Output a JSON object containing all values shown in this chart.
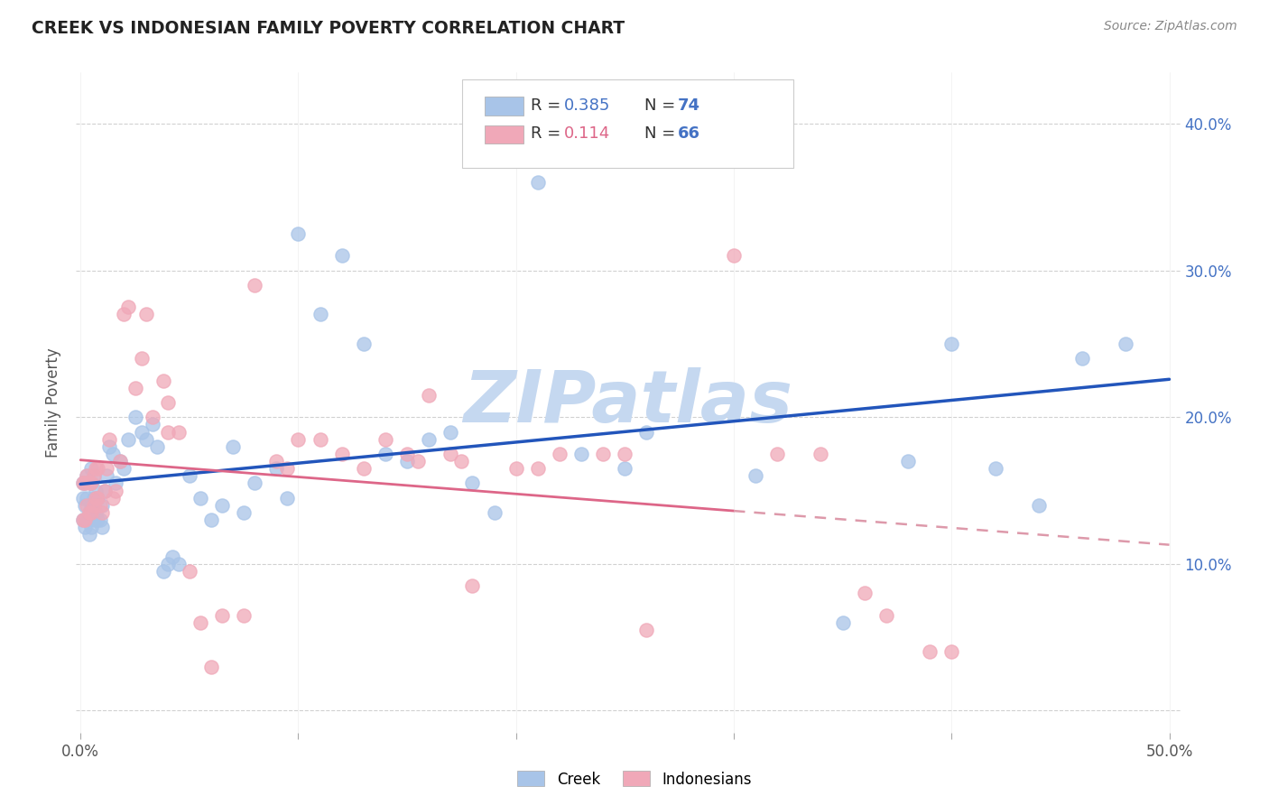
{
  "title": "CREEK VS INDONESIAN FAMILY POVERTY CORRELATION CHART",
  "source": "Source: ZipAtlas.com",
  "ylabel": "Family Poverty",
  "ytick_labels": [
    "",
    "10.0%",
    "20.0%",
    "30.0%",
    "40.0%"
  ],
  "yticks": [
    0.0,
    0.1,
    0.2,
    0.3,
    0.4
  ],
  "xticks": [
    0.0,
    0.1,
    0.2,
    0.3,
    0.4,
    0.5
  ],
  "xlim": [
    -0.002,
    0.505
  ],
  "ylim": [
    -0.015,
    0.435
  ],
  "creek_R": 0.385,
  "creek_N": 74,
  "indonesian_R": 0.114,
  "indonesian_N": 66,
  "creek_color": "#a8c4e8",
  "indonesian_color": "#f0a8b8",
  "creek_line_color": "#2255bb",
  "indonesian_line_color": "#dd6688",
  "indonesian_line_dashed_color": "#dd99aa",
  "watermark_text": "ZIPatlas",
  "watermark_color": "#c5d8f0",
  "background_color": "#ffffff",
  "creek_x": [
    0.001,
    0.001,
    0.001,
    0.002,
    0.002,
    0.002,
    0.003,
    0.003,
    0.003,
    0.004,
    0.004,
    0.005,
    0.005,
    0.005,
    0.005,
    0.006,
    0.006,
    0.006,
    0.007,
    0.007,
    0.008,
    0.008,
    0.009,
    0.01,
    0.01,
    0.011,
    0.012,
    0.013,
    0.015,
    0.016,
    0.018,
    0.02,
    0.022,
    0.025,
    0.028,
    0.03,
    0.033,
    0.035,
    0.038,
    0.04,
    0.042,
    0.045,
    0.05,
    0.055,
    0.06,
    0.065,
    0.07,
    0.075,
    0.08,
    0.09,
    0.095,
    0.1,
    0.11,
    0.12,
    0.13,
    0.14,
    0.15,
    0.16,
    0.17,
    0.18,
    0.19,
    0.2,
    0.21,
    0.23,
    0.25,
    0.26,
    0.31,
    0.35,
    0.38,
    0.4,
    0.42,
    0.44,
    0.46,
    0.48
  ],
  "creek_y": [
    0.13,
    0.145,
    0.155,
    0.125,
    0.14,
    0.155,
    0.13,
    0.145,
    0.16,
    0.12,
    0.135,
    0.125,
    0.14,
    0.155,
    0.165,
    0.13,
    0.145,
    0.16,
    0.135,
    0.15,
    0.13,
    0.145,
    0.13,
    0.125,
    0.14,
    0.15,
    0.16,
    0.18,
    0.175,
    0.155,
    0.17,
    0.165,
    0.185,
    0.2,
    0.19,
    0.185,
    0.195,
    0.18,
    0.095,
    0.1,
    0.105,
    0.1,
    0.16,
    0.145,
    0.13,
    0.14,
    0.18,
    0.135,
    0.155,
    0.165,
    0.145,
    0.325,
    0.27,
    0.31,
    0.25,
    0.175,
    0.17,
    0.185,
    0.19,
    0.155,
    0.135,
    0.38,
    0.36,
    0.175,
    0.165,
    0.19,
    0.16,
    0.06,
    0.17,
    0.25,
    0.165,
    0.14,
    0.24,
    0.25
  ],
  "indonesian_x": [
    0.001,
    0.001,
    0.002,
    0.002,
    0.003,
    0.003,
    0.004,
    0.004,
    0.005,
    0.005,
    0.006,
    0.006,
    0.007,
    0.007,
    0.008,
    0.008,
    0.009,
    0.01,
    0.011,
    0.012,
    0.013,
    0.015,
    0.016,
    0.018,
    0.02,
    0.022,
    0.025,
    0.028,
    0.03,
    0.033,
    0.038,
    0.04,
    0.045,
    0.05,
    0.055,
    0.06,
    0.065,
    0.075,
    0.09,
    0.095,
    0.1,
    0.11,
    0.12,
    0.13,
    0.14,
    0.15,
    0.155,
    0.16,
    0.17,
    0.175,
    0.18,
    0.2,
    0.21,
    0.22,
    0.24,
    0.25,
    0.26,
    0.3,
    0.32,
    0.34,
    0.36,
    0.37,
    0.39,
    0.4,
    0.04,
    0.08
  ],
  "indonesian_y": [
    0.13,
    0.155,
    0.13,
    0.155,
    0.14,
    0.16,
    0.135,
    0.155,
    0.135,
    0.155,
    0.14,
    0.16,
    0.145,
    0.165,
    0.145,
    0.165,
    0.14,
    0.135,
    0.15,
    0.165,
    0.185,
    0.145,
    0.15,
    0.17,
    0.27,
    0.275,
    0.22,
    0.24,
    0.27,
    0.2,
    0.225,
    0.21,
    0.19,
    0.095,
    0.06,
    0.03,
    0.065,
    0.065,
    0.17,
    0.165,
    0.185,
    0.185,
    0.175,
    0.165,
    0.185,
    0.175,
    0.17,
    0.215,
    0.175,
    0.17,
    0.085,
    0.165,
    0.165,
    0.175,
    0.175,
    0.175,
    0.055,
    0.31,
    0.175,
    0.175,
    0.08,
    0.065,
    0.04,
    0.04,
    0.19,
    0.29
  ]
}
